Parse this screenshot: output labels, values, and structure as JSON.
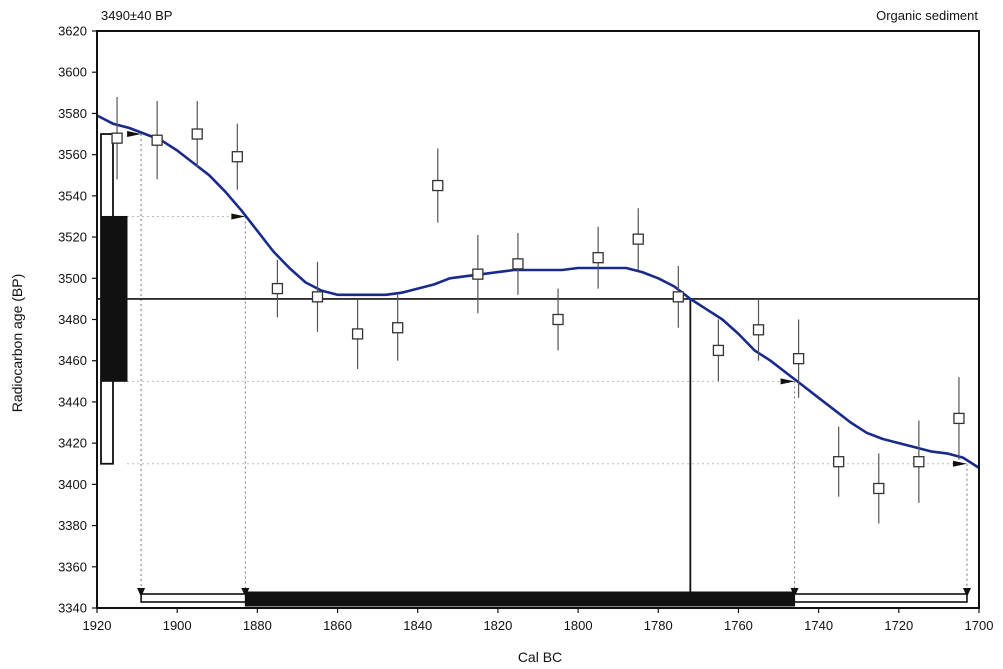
{
  "chart_data": {
    "type": "scatter",
    "title_left": "3490±40 BP",
    "title_right": "Organic sediment",
    "xlabel": "Cal BC",
    "ylabel": "Radiocarbon age (BP)",
    "xlim": [
      1920,
      1700
    ],
    "ylim": [
      3340,
      3620
    ],
    "x_ticks": [
      1920,
      1900,
      1880,
      1860,
      1840,
      1820,
      1800,
      1780,
      1760,
      1740,
      1720,
      1700
    ],
    "y_ticks": [
      3340,
      3360,
      3380,
      3400,
      3420,
      3440,
      3460,
      3480,
      3500,
      3520,
      3540,
      3560,
      3580,
      3600,
      3620
    ],
    "grid": false,
    "colors": {
      "curve": "#1a2a8c",
      "frame": "#111111",
      "marker": "#333333",
      "errorbar": "#555555"
    },
    "measured_age": 3490,
    "measured_error": 40,
    "measured_1sigma": [
      3450,
      3530
    ],
    "measured_2sigma": [
      3410,
      3570
    ],
    "calibrated_intercept": 1772,
    "calibrated_1sigma_range": [
      1883,
      1746
    ],
    "calibrated_2sigma_range": [
      1909,
      1703
    ],
    "calibration_curve": [
      [
        1920,
        3579
      ],
      [
        1916,
        3575
      ],
      [
        1912,
        3573
      ],
      [
        1908,
        3570
      ],
      [
        1904,
        3567
      ],
      [
        1900,
        3562
      ],
      [
        1896,
        3556
      ],
      [
        1892,
        3550
      ],
      [
        1888,
        3542
      ],
      [
        1884,
        3533
      ],
      [
        1880,
        3523
      ],
      [
        1876,
        3513
      ],
      [
        1872,
        3505
      ],
      [
        1868,
        3498
      ],
      [
        1864,
        3494
      ],
      [
        1860,
        3492
      ],
      [
        1856,
        3492
      ],
      [
        1852,
        3492
      ],
      [
        1848,
        3492
      ],
      [
        1844,
        3493
      ],
      [
        1840,
        3495
      ],
      [
        1836,
        3497
      ],
      [
        1832,
        3500
      ],
      [
        1828,
        3501
      ],
      [
        1824,
        3502
      ],
      [
        1820,
        3503
      ],
      [
        1816,
        3504
      ],
      [
        1812,
        3504
      ],
      [
        1808,
        3504
      ],
      [
        1804,
        3504
      ],
      [
        1800,
        3505
      ],
      [
        1796,
        3505
      ],
      [
        1792,
        3505
      ],
      [
        1788,
        3505
      ],
      [
        1784,
        3503
      ],
      [
        1780,
        3500
      ],
      [
        1776,
        3496
      ],
      [
        1772,
        3490
      ],
      [
        1768,
        3485
      ],
      [
        1764,
        3480
      ],
      [
        1760,
        3473
      ],
      [
        1756,
        3465
      ],
      [
        1752,
        3460
      ],
      [
        1748,
        3454
      ],
      [
        1744,
        3448
      ],
      [
        1740,
        3442
      ],
      [
        1736,
        3436
      ],
      [
        1732,
        3430
      ],
      [
        1728,
        3425
      ],
      [
        1724,
        3422
      ],
      [
        1720,
        3420
      ],
      [
        1716,
        3418
      ],
      [
        1712,
        3416
      ],
      [
        1708,
        3415
      ],
      [
        1704,
        3413
      ],
      [
        1700,
        3408
      ]
    ],
    "data_points": [
      {
        "x": 1915,
        "y": 3568,
        "err": 20
      },
      {
        "x": 1905,
        "y": 3567,
        "err": 19
      },
      {
        "x": 1895,
        "y": 3570,
        "err": 16
      },
      {
        "x": 1885,
        "y": 3559,
        "err": 16
      },
      {
        "x": 1875,
        "y": 3495,
        "err": 14
      },
      {
        "x": 1865,
        "y": 3491,
        "err": 17
      },
      {
        "x": 1855,
        "y": 3473,
        "err": 17
      },
      {
        "x": 1845,
        "y": 3476,
        "err": 16
      },
      {
        "x": 1835,
        "y": 3545,
        "err": 18
      },
      {
        "x": 1825,
        "y": 3502,
        "err": 19
      },
      {
        "x": 1815,
        "y": 3507,
        "err": 15
      },
      {
        "x": 1805,
        "y": 3480,
        "err": 15
      },
      {
        "x": 1795,
        "y": 3510,
        "err": 15
      },
      {
        "x": 1785,
        "y": 3519,
        "err": 15
      },
      {
        "x": 1775,
        "y": 3491,
        "err": 15
      },
      {
        "x": 1765,
        "y": 3465,
        "err": 15
      },
      {
        "x": 1755,
        "y": 3475,
        "err": 15
      },
      {
        "x": 1745,
        "y": 3461,
        "err": 19
      },
      {
        "x": 1735,
        "y": 3411,
        "err": 17
      },
      {
        "x": 1725,
        "y": 3398,
        "err": 17
      },
      {
        "x": 1715,
        "y": 3411,
        "err": 20
      },
      {
        "x": 1705,
        "y": 3432,
        "err": 20
      }
    ]
  }
}
